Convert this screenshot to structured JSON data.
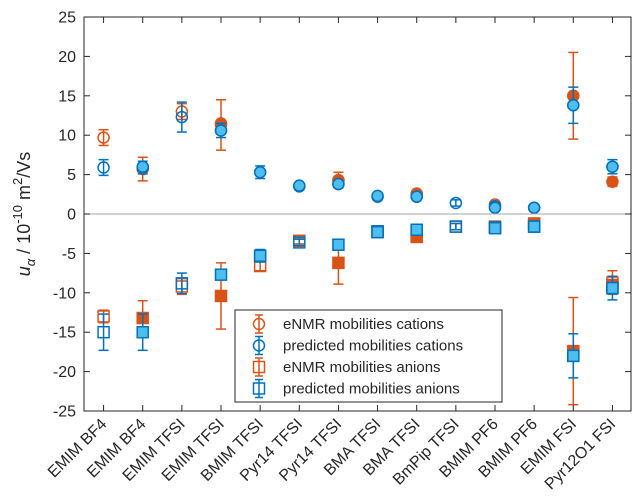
{
  "chart_data": {
    "type": "scatter",
    "categories": [
      "EMIM BF4",
      "EMIM BF4",
      "EMIM TFSI",
      "EMIM TFSI",
      "BMIM TFSI",
      "Pyr14 TFSI",
      "Pyr14 TFSI",
      "BMA TFSI",
      "BMA TFSI",
      "BmPip TFSI",
      "BMIM PF6",
      "BMIM PF6",
      "EMIM FSI",
      "Pyr12O1 FSI"
    ],
    "ylim": [
      -25,
      25
    ],
    "yticks": [
      -25,
      -20,
      -15,
      -10,
      -5,
      0,
      5,
      10,
      15,
      20,
      25
    ],
    "ylabel": {
      "symbol": "u",
      "subscript": "α",
      "separator": "/",
      "base": "10",
      "exponent": "-10",
      "unit": "m",
      "unit_exponent": "2",
      "unit_suffix": "/Vs"
    },
    "zero_line": true,
    "grid": false,
    "legend_placement": "bottom-center",
    "colors": {
      "enmr": "#D95319",
      "predicted": "#0072BD",
      "predicted_fill": "#4DBEEE",
      "zero_line": "#a6a6a6"
    },
    "series": [
      {
        "name": "eNMR mobilities cations",
        "marker": "circle",
        "fill": "open",
        "color": "#D95319",
        "values": [
          9.7,
          null,
          13.0,
          11.3,
          null,
          null,
          4.3,
          null,
          2.5,
          null,
          1.2,
          null,
          15.0,
          null
        ],
        "errors": [
          1.0,
          null,
          1.0,
          3.2,
          null,
          null,
          1.0,
          null,
          0.4,
          null,
          0.3,
          null,
          5.5,
          null
        ]
      },
      {
        "name": "",
        "marker": "circle",
        "fill": "filled",
        "color": "#D95319",
        "values": [
          null,
          5.7,
          null,
          11.5,
          null,
          null,
          4.3,
          null,
          2.6,
          null,
          null,
          null,
          15.0,
          4.1
        ],
        "errors": [
          null,
          1.5,
          null,
          null,
          null,
          null,
          null,
          null,
          null,
          null,
          null,
          null,
          null,
          0.6
        ]
      },
      {
        "name": "predicted mobilities cations",
        "marker": "circle",
        "fill": "open",
        "color": "#0072BD",
        "values": [
          5.9,
          5.9,
          12.3,
          10.6,
          5.3,
          3.5,
          3.8,
          2.2,
          2.2,
          1.4,
          1.0,
          0.8,
          13.8,
          6.0
        ],
        "errors": [
          1.0,
          0.8,
          1.9,
          0.9,
          0.8,
          0.4,
          0.4,
          0.4,
          0.4,
          0.4,
          0.3,
          0.3,
          2.3,
          0.9
        ]
      },
      {
        "name": "",
        "marker": "circle",
        "fill": "filled",
        "color": "#0072BD",
        "values": [
          null,
          6.0,
          null,
          10.6,
          5.3,
          3.6,
          3.8,
          2.3,
          2.2,
          null,
          0.8,
          0.8,
          13.8,
          6.0
        ],
        "errors": [
          null,
          null,
          null,
          null,
          null,
          null,
          null,
          null,
          null,
          null,
          null,
          null,
          null,
          null
        ]
      },
      {
        "name": "eNMR mobilities anions",
        "marker": "square",
        "fill": "open",
        "color": "#D95319",
        "values": [
          -13.0,
          null,
          -9.2,
          null,
          -6.6,
          -3.4,
          null,
          -2.3,
          -2.9,
          -1.6,
          null,
          -1.3,
          -17.4,
          -8.7
        ],
        "errors": [
          0.8,
          null,
          1.0,
          null,
          0.6,
          0.4,
          null,
          0.5,
          0.5,
          0.4,
          null,
          0.3,
          6.8,
          1.5
        ]
      },
      {
        "name": "",
        "marker": "square",
        "fill": "filled",
        "color": "#D95319",
        "values": [
          null,
          -13.2,
          null,
          -10.4,
          null,
          null,
          -6.2,
          -2.2,
          -2.9,
          null,
          -1.6,
          -1.2,
          -17.5,
          -9.0
        ],
        "errors": [
          null,
          2.2,
          null,
          4.2,
          null,
          null,
          2.7,
          null,
          null,
          null,
          null,
          null,
          null,
          null
        ]
      },
      {
        "name": "predicted mobilities anions",
        "marker": "square",
        "fill": "open",
        "color": "#0072BD",
        "values": [
          -15.0,
          null,
          -8.8,
          null,
          -5.3,
          -3.6,
          null,
          -2.2,
          -2.0,
          -1.6,
          -1.7,
          -1.6,
          -18.0,
          -9.4
        ],
        "errors": [
          2.3,
          null,
          1.3,
          null,
          0.8,
          0.4,
          null,
          0.4,
          0.4,
          0.4,
          0.3,
          0.3,
          2.8,
          1.5
        ]
      },
      {
        "name": "",
        "marker": "square",
        "fill": "filled",
        "color": "#0072BD",
        "values": [
          null,
          -15.0,
          null,
          -7.7,
          -5.3,
          null,
          -3.9,
          -2.3,
          -2.0,
          null,
          -1.8,
          -1.6,
          -18.0,
          -9.4
        ],
        "errors": [
          null,
          2.3,
          null,
          0.5,
          null,
          null,
          0.4,
          null,
          null,
          null,
          null,
          null,
          null,
          null
        ]
      }
    ]
  }
}
